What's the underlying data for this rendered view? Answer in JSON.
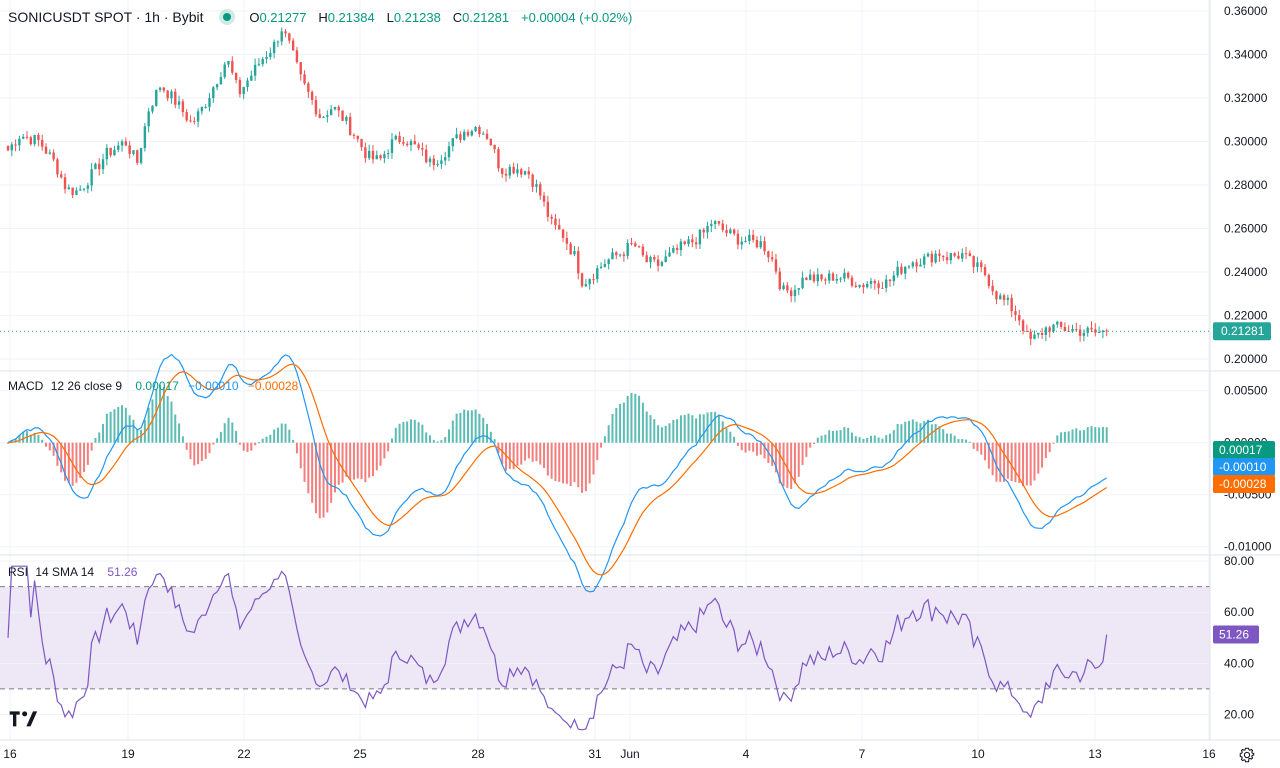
{
  "header": {
    "symbol": "SONICUSDT SPOT · 1h · Bybit",
    "open_label": "O",
    "open": "0.21277",
    "high_label": "H",
    "high": "0.21384",
    "low_label": "L",
    "low": "0.21238",
    "close_label": "C",
    "close": "0.21281",
    "change": "+0.00004 (+0.02%)"
  },
  "macd": {
    "label": "MACD",
    "params": "12 26 close 9",
    "hist": "0.00017",
    "macd": "−0.00010",
    "signal": "−0.00028"
  },
  "rsi": {
    "label": "RSI",
    "params": "14 SMA 14",
    "value": "51.26"
  },
  "colors": {
    "up": "#26a69a",
    "down": "#ef5350",
    "macd": "#2196f3",
    "signal": "#ff6d00",
    "rsi": "#7e57c2",
    "rsi_band": "#ede7f6",
    "grid": "#f0f3fa"
  },
  "icons": {
    "logo": "tradingview-logo",
    "settings": "gear-icon"
  },
  "chart_data": [
    {
      "type": "candlestick",
      "title": "SONICUSDT SPOT · 1h · Bybit",
      "y_ticks": [
        "0.36000",
        "0.34000",
        "0.32000",
        "0.30000",
        "0.28000",
        "0.26000",
        "0.24000",
        "0.22000",
        "0.20000"
      ],
      "ylim": [
        0.195,
        0.365
      ],
      "x_ticks": [
        "16",
        "19",
        "22",
        "25",
        "28",
        "31",
        "Jun",
        "4",
        "7",
        "10",
        "13",
        "16"
      ],
      "last_price": "0.21281",
      "close_path": [
        [
          16,
          0.296
        ],
        [
          16.3,
          0.303
        ],
        [
          16.8,
          0.3
        ],
        [
          17.2,
          0.29
        ],
        [
          17.5,
          0.278
        ],
        [
          17.8,
          0.277
        ],
        [
          18.2,
          0.286
        ],
        [
          18.5,
          0.294
        ],
        [
          19.0,
          0.3
        ],
        [
          19.3,
          0.29
        ],
        [
          19.6,
          0.315
        ],
        [
          19.9,
          0.326
        ],
        [
          20.3,
          0.318
        ],
        [
          20.7,
          0.308
        ],
        [
          21.0,
          0.316
        ],
        [
          21.3,
          0.327
        ],
        [
          21.6,
          0.338
        ],
        [
          21.9,
          0.322
        ],
        [
          22.2,
          0.33
        ],
        [
          22.5,
          0.338
        ],
        [
          22.8,
          0.344
        ],
        [
          23.0,
          0.352
        ],
        [
          23.2,
          0.344
        ],
        [
          23.5,
          0.328
        ],
        [
          23.8,
          0.318
        ],
        [
          24.0,
          0.311
        ],
        [
          24.3,
          0.316
        ],
        [
          24.6,
          0.31
        ],
        [
          24.9,
          0.302
        ],
        [
          25.2,
          0.293
        ],
        [
          25.5,
          0.291
        ],
        [
          25.8,
          0.299
        ],
        [
          26.1,
          0.302
        ],
        [
          26.5,
          0.296
        ],
        [
          26.8,
          0.29
        ],
        [
          27.1,
          0.294
        ],
        [
          27.4,
          0.3
        ],
        [
          27.7,
          0.305
        ],
        [
          28.0,
          0.307
        ],
        [
          28.3,
          0.302
        ],
        [
          28.6,
          0.287
        ],
        [
          29.0,
          0.288
        ],
        [
          29.3,
          0.286
        ],
        [
          29.6,
          0.276
        ],
        [
          29.9,
          0.262
        ],
        [
          30.2,
          0.257
        ],
        [
          30.5,
          0.247
        ],
        [
          30.7,
          0.235
        ],
        [
          31.0,
          0.24
        ],
        [
          31.3,
          0.245
        ],
        [
          31.7,
          0.249
        ],
        [
          32.0,
          0.253
        ],
        [
          32.3,
          0.245
        ],
        [
          32.6,
          0.243
        ],
        [
          32.9,
          0.247
        ],
        [
          33.2,
          0.251
        ],
        [
          33.5,
          0.254
        ],
        [
          33.8,
          0.258
        ],
        [
          34.0,
          0.263
        ],
        [
          34.3,
          0.259
        ],
        [
          34.7,
          0.255
        ],
        [
          35.0,
          0.254
        ],
        [
          35.3,
          0.253
        ],
        [
          35.6,
          0.244
        ],
        [
          35.8,
          0.231
        ],
        [
          36.1,
          0.232
        ],
        [
          36.4,
          0.238
        ],
        [
          36.8,
          0.236
        ],
        [
          37.1,
          0.238
        ],
        [
          37.5,
          0.237
        ],
        [
          37.8,
          0.234
        ],
        [
          38.1,
          0.236
        ],
        [
          38.5,
          0.235
        ],
        [
          38.8,
          0.241
        ],
        [
          39.1,
          0.245
        ],
        [
          39.5,
          0.246
        ],
        [
          39.8,
          0.249
        ],
        [
          40.0,
          0.247
        ],
        [
          40.4,
          0.248
        ],
        [
          40.7,
          0.243
        ],
        [
          41.0,
          0.239
        ],
        [
          41.3,
          0.229
        ],
        [
          41.6,
          0.225
        ],
        [
          41.9,
          0.218
        ],
        [
          42.1,
          0.208
        ],
        [
          42.3,
          0.21
        ],
        [
          42.6,
          0.215
        ],
        [
          43.0,
          0.214
        ],
        [
          43.4,
          0.213
        ],
        [
          43.8,
          0.212
        ],
        [
          44.1,
          0.2128
        ]
      ]
    },
    {
      "type": "macd",
      "label": "MACD 12 26 close 9",
      "y_ticks": [
        "0.00500",
        "0.00000",
        "-0.00500",
        "-0.01000"
      ],
      "ylim": [
        -0.0107,
        0.0068
      ],
      "hist_last": "0.00017",
      "macd_last": "-0.00010",
      "signal_last": "-0.00028"
    },
    {
      "type": "line",
      "label": "RSI 14 SMA 14",
      "y_ticks": [
        "80.00",
        "60.00",
        "40.00",
        "20.00"
      ],
      "ylim": [
        10,
        82
      ],
      "bands": [
        30,
        70
      ],
      "last": "51.26"
    }
  ]
}
